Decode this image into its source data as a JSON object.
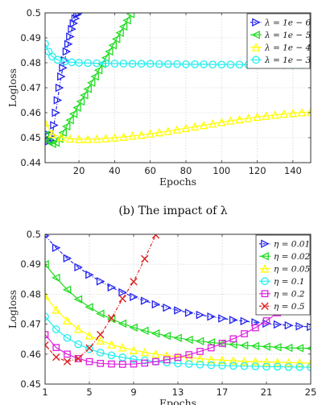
{
  "caption_b": "(b) The impact of λ",
  "chart_data": [
    {
      "type": "line",
      "xlabel": "Epochs",
      "ylabel": "Logloss",
      "xlim": [
        1,
        150
      ],
      "ylim": [
        0.44,
        0.5
      ],
      "xticks": [
        20,
        40,
        60,
        80,
        100,
        120,
        140
      ],
      "yticks": [
        0.44,
        0.45,
        0.46,
        0.47,
        0.48,
        0.49,
        0.5
      ],
      "grid": true,
      "legend_position": "top-right",
      "series": [
        {
          "name": "λ = 1e − 6",
          "color": "#2222ee",
          "marker": "triangle-right",
          "dash": true,
          "x": [
            1,
            2,
            3,
            4,
            5,
            6,
            7,
            8,
            9,
            10,
            11,
            12,
            13,
            14,
            15,
            16,
            17,
            18,
            19,
            20
          ],
          "y": [
            0.452,
            0.449,
            0.4485,
            0.449,
            0.451,
            0.455,
            0.46,
            0.465,
            0.47,
            0.4745,
            0.478,
            0.481,
            0.4845,
            0.4875,
            0.4905,
            0.4935,
            0.4958,
            0.4978,
            0.4993,
            0.5
          ]
        },
        {
          "name": "λ = 1e − 5",
          "color": "#22dd22",
          "marker": "triangle-left",
          "dash": false,
          "x": [
            1,
            3,
            5,
            7,
            9,
            11,
            13,
            15,
            17,
            19,
            21,
            23,
            25,
            27,
            29,
            31,
            33,
            35,
            37,
            39,
            41,
            43,
            45,
            47,
            49
          ],
          "y": [
            0.451,
            0.4485,
            0.4475,
            0.448,
            0.4495,
            0.452,
            0.4545,
            0.457,
            0.4595,
            0.462,
            0.4645,
            0.467,
            0.4695,
            0.472,
            0.4745,
            0.477,
            0.4795,
            0.482,
            0.4845,
            0.487,
            0.4895,
            0.492,
            0.4945,
            0.497,
            0.4995
          ]
        },
        {
          "name": "λ = 1e − 4",
          "color": "#ffff00",
          "marker": "triangle-up",
          "dash": false,
          "x": [
            1,
            5,
            10,
            15,
            20,
            25,
            30,
            35,
            40,
            45,
            50,
            55,
            60,
            65,
            70,
            75,
            80,
            85,
            90,
            95,
            100,
            105,
            110,
            115,
            120,
            125,
            130,
            135,
            140,
            145,
            150
          ],
          "y": [
            0.456,
            0.4515,
            0.4502,
            0.4496,
            0.4494,
            0.4494,
            0.4495,
            0.4497,
            0.45,
            0.4503,
            0.4507,
            0.4511,
            0.4516,
            0.4521,
            0.4526,
            0.4532,
            0.4538,
            0.4544,
            0.455,
            0.4556,
            0.4562,
            0.4568,
            0.4573,
            0.4578,
            0.4583,
            0.4587,
            0.4591,
            0.4595,
            0.4598,
            0.4601,
            0.4603
          ]
        },
        {
          "name": "λ = 1e − 3",
          "color": "#22eeee",
          "marker": "circle",
          "dash": false,
          "x": [
            1,
            3,
            5,
            8,
            12,
            16,
            20,
            25,
            30,
            35,
            40,
            45,
            50,
            55,
            60,
            65,
            70,
            75,
            80,
            85,
            90,
            95,
            100,
            105,
            110,
            115,
            120,
            125,
            130,
            135,
            140,
            145,
            150
          ],
          "y": [
            0.4876,
            0.4845,
            0.4825,
            0.4812,
            0.4805,
            0.4802,
            0.48,
            0.4799,
            0.4798,
            0.4798,
            0.4797,
            0.4797,
            0.4796,
            0.4796,
            0.4796,
            0.4795,
            0.4795,
            0.4795,
            0.4794,
            0.4794,
            0.4794,
            0.4793,
            0.4793,
            0.4793,
            0.4793,
            0.4792,
            0.4792,
            0.4792,
            0.4792,
            0.4791,
            0.4791,
            0.4791,
            0.479
          ]
        }
      ]
    },
    {
      "type": "line",
      "xlabel": "Epochs",
      "ylabel": "Logloss",
      "xlim": [
        1,
        25
      ],
      "ylim": [
        0.45,
        0.5
      ],
      "xticks": [
        1,
        5,
        9,
        13,
        17,
        21,
        25
      ],
      "yticks": [
        0.45,
        0.46,
        0.47,
        0.48,
        0.49,
        0.5
      ],
      "grid": true,
      "legend_position": "top-right",
      "series": [
        {
          "name": "η = 0.01",
          "color": "#2222ee",
          "marker": "triangle-right",
          "dash": true,
          "x": [
            1,
            2,
            3,
            4,
            5,
            6,
            7,
            8,
            9,
            10,
            11,
            12,
            13,
            14,
            15,
            16,
            17,
            18,
            19,
            20,
            21,
            22,
            23,
            24,
            25
          ],
          "y": [
            0.4995,
            0.4955,
            0.492,
            0.489,
            0.4865,
            0.4843,
            0.4823,
            0.4806,
            0.4791,
            0.4778,
            0.4766,
            0.4755,
            0.4746,
            0.4738,
            0.4731,
            0.4725,
            0.4719,
            0.4714,
            0.471,
            0.4706,
            0.4702,
            0.4699,
            0.4696,
            0.4693,
            0.4691
          ]
        },
        {
          "name": "η = 0.02",
          "color": "#22dd22",
          "marker": "triangle-left",
          "dash": false,
          "x": [
            1,
            2,
            3,
            4,
            5,
            6,
            7,
            8,
            9,
            10,
            11,
            12,
            13,
            14,
            15,
            16,
            17,
            18,
            19,
            20,
            21,
            22,
            23,
            24,
            25
          ],
          "y": [
            0.49,
            0.4855,
            0.4815,
            0.4783,
            0.4757,
            0.4735,
            0.4717,
            0.4702,
            0.4689,
            0.4678,
            0.4669,
            0.4661,
            0.4654,
            0.4648,
            0.4643,
            0.4639,
            0.4635,
            0.4632,
            0.4629,
            0.4627,
            0.4625,
            0.4623,
            0.4621,
            0.462,
            0.4619
          ]
        },
        {
          "name": "η = 0.05",
          "color": "#ffff00",
          "marker": "triangle-up",
          "dash": false,
          "x": [
            1,
            2,
            3,
            4,
            5,
            6,
            7,
            8,
            9,
            10,
            11,
            12,
            13,
            14,
            15,
            16,
            17,
            18,
            19,
            20,
            21,
            22,
            23,
            24,
            25
          ],
          "y": [
            0.4795,
            0.4748,
            0.4712,
            0.4684,
            0.4662,
            0.4645,
            0.4632,
            0.4622,
            0.4613,
            0.4606,
            0.46,
            0.4595,
            0.4591,
            0.4588,
            0.4585,
            0.4582,
            0.458,
            0.4578,
            0.4576,
            0.4575,
            0.4574,
            0.4573,
            0.4572,
            0.4571,
            0.457
          ]
        },
        {
          "name": "η = 0.1",
          "color": "#22eeee",
          "marker": "circle",
          "dash": false,
          "x": [
            1,
            2,
            3,
            4,
            5,
            6,
            7,
            8,
            9,
            10,
            11,
            12,
            13,
            14,
            15,
            16,
            17,
            18,
            19,
            20,
            21,
            22,
            23,
            24,
            25
          ],
          "y": [
            0.4725,
            0.4683,
            0.4654,
            0.4633,
            0.4617,
            0.4605,
            0.4596,
            0.4589,
            0.4583,
            0.4579,
            0.4575,
            0.4572,
            0.4569,
            0.4567,
            0.4565,
            0.4563,
            0.4562,
            0.4561,
            0.456,
            0.4559,
            0.4558,
            0.4558,
            0.4557,
            0.4557,
            0.4556
          ]
        },
        {
          "name": "η = 0.2",
          "color": "#dd22dd",
          "marker": "square",
          "dash": false,
          "x": [
            1,
            2,
            3,
            4,
            5,
            6,
            7,
            8,
            9,
            10,
            11,
            12,
            13,
            14,
            15,
            16,
            17,
            18,
            19,
            20,
            21,
            22,
            23,
            24,
            25
          ],
          "y": [
            0.4665,
            0.4622,
            0.46,
            0.4585,
            0.4575,
            0.4569,
            0.4567,
            0.4566,
            0.4567,
            0.457,
            0.4575,
            0.4581,
            0.4589,
            0.4598,
            0.4609,
            0.4621,
            0.4636,
            0.4651,
            0.4668,
            0.4688,
            0.4711,
            0.4738,
            0.4768,
            0.4805,
            0.491
          ]
        },
        {
          "name": "η = 0.5",
          "color": "#dd2222",
          "marker": "x",
          "dash": true,
          "x": [
            1,
            2,
            3,
            4,
            5,
            6,
            7,
            8,
            9,
            10,
            11
          ],
          "y": [
            0.463,
            0.459,
            0.4575,
            0.4585,
            0.462,
            0.4665,
            0.472,
            0.4785,
            0.4842,
            0.4918,
            0.4998
          ]
        }
      ]
    }
  ]
}
